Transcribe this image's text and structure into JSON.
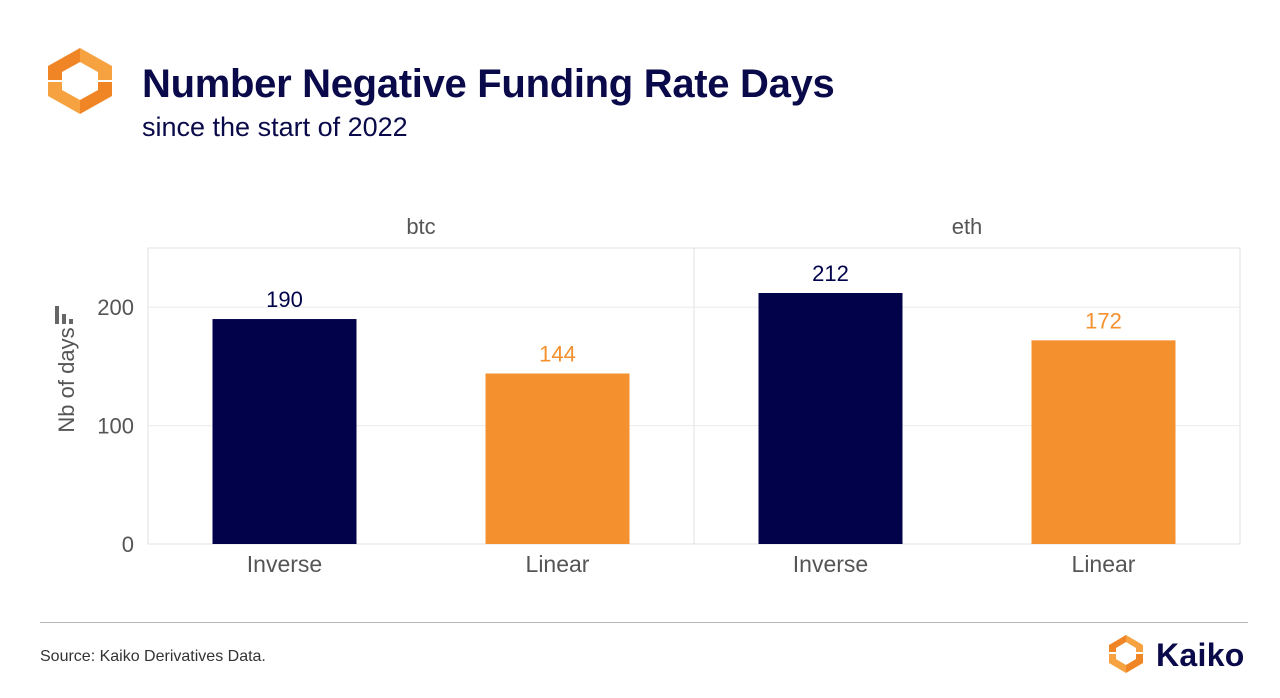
{
  "header": {
    "title": "Number Negative Funding Rate Days",
    "subtitle": "since the start of 2022",
    "logo_icon": "kaiko-hexagon-logo-icon"
  },
  "chart_data": {
    "type": "bar",
    "title": "Number Negative Funding Rate Days",
    "subtitle": "since the start of 2022",
    "ylabel": "Nb of days",
    "ylim": [
      0,
      250
    ],
    "yticks": [
      0,
      100,
      200
    ],
    "grid": true,
    "facets": [
      {
        "name": "btc",
        "categories": [
          "Inverse",
          "Linear"
        ],
        "values": [
          190,
          144
        ],
        "labels": [
          "190",
          "144"
        ]
      },
      {
        "name": "eth",
        "categories": [
          "Inverse",
          "Linear"
        ],
        "values": [
          212,
          172
        ],
        "labels": [
          "212",
          "172"
        ]
      }
    ],
    "colors": {
      "Inverse": "#01024a",
      "Linear": "#f4902e"
    }
  },
  "footer": {
    "source": "Source: Kaiko Derivatives Data.",
    "brand": "Kaiko",
    "brand_icon": "kaiko-hexagon-logo-icon"
  },
  "colors": {
    "title": "#0a0a4a",
    "brand_orange": "#f4902e",
    "brand_navy": "#01024a"
  }
}
